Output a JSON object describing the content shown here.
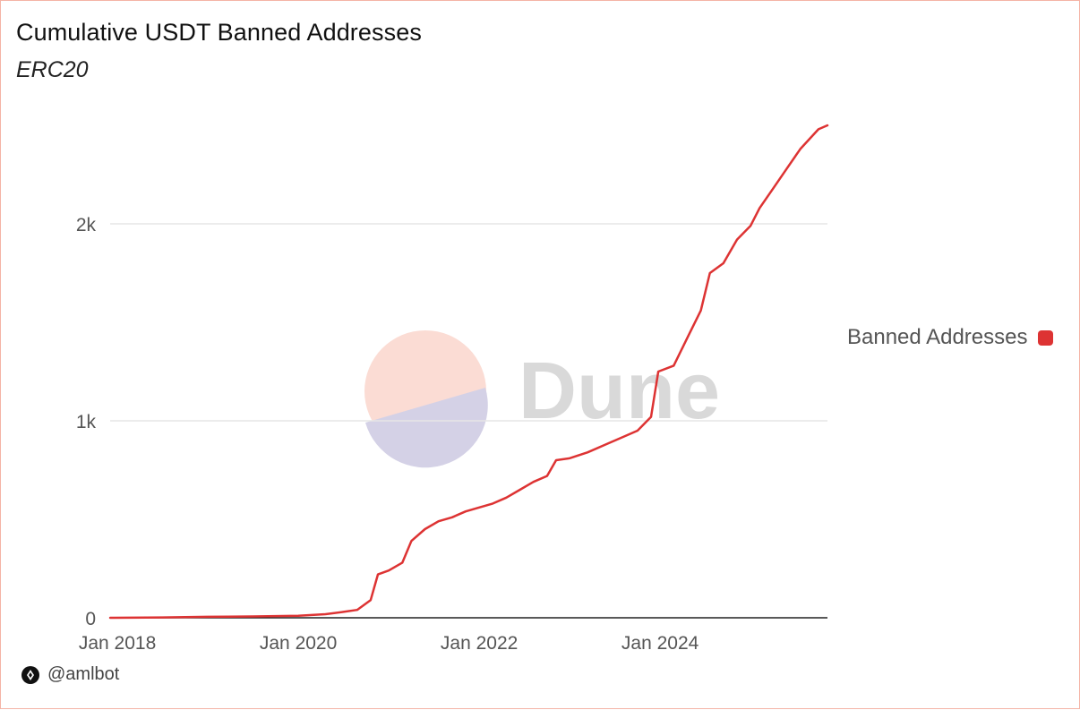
{
  "title": "Cumulative USDT Banned Addresses",
  "subtitle": "ERC20",
  "watermark": "Dune",
  "footer": {
    "handle": "@amlbot",
    "icon": "dune-logo-icon"
  },
  "colors": {
    "series": "#dd3333",
    "border": "#f4b4a6",
    "grid": "#e6e6e6",
    "axis": "#222222"
  },
  "chart_data": {
    "type": "line",
    "title": "Cumulative USDT Banned Addresses",
    "subtitle": "ERC20",
    "xlabel": "",
    "ylabel": "",
    "xlim": [
      2017.92,
      2025.85
    ],
    "ylim": [
      0,
      2500
    ],
    "yticks": [
      0,
      1000,
      2000
    ],
    "ytick_labels": [
      "0",
      "1k",
      "2k"
    ],
    "xticks": [
      2018,
      2020,
      2022,
      2024
    ],
    "xtick_labels": [
      "Jan 2018",
      "Jan 2020",
      "Jan 2022",
      "Jan 2024"
    ],
    "grid": true,
    "legend_position": "right",
    "series": [
      {
        "name": "Banned Addresses",
        "color": "#dd3333",
        "points": [
          [
            2017.92,
            0
          ],
          [
            2018.5,
            2
          ],
          [
            2019.0,
            5
          ],
          [
            2019.5,
            7
          ],
          [
            2020.0,
            10
          ],
          [
            2020.3,
            18
          ],
          [
            2020.5,
            30
          ],
          [
            2020.65,
            40
          ],
          [
            2020.8,
            90
          ],
          [
            2020.88,
            220
          ],
          [
            2021.0,
            240
          ],
          [
            2021.15,
            280
          ],
          [
            2021.25,
            390
          ],
          [
            2021.4,
            450
          ],
          [
            2021.55,
            490
          ],
          [
            2021.7,
            510
          ],
          [
            2021.85,
            540
          ],
          [
            2022.0,
            560
          ],
          [
            2022.15,
            580
          ],
          [
            2022.3,
            610
          ],
          [
            2022.45,
            650
          ],
          [
            2022.6,
            690
          ],
          [
            2022.75,
            720
          ],
          [
            2022.85,
            800
          ],
          [
            2023.0,
            810
          ],
          [
            2023.2,
            840
          ],
          [
            2023.4,
            880
          ],
          [
            2023.6,
            920
          ],
          [
            2023.75,
            950
          ],
          [
            2023.9,
            1020
          ],
          [
            2023.98,
            1250
          ],
          [
            2024.15,
            1280
          ],
          [
            2024.3,
            1420
          ],
          [
            2024.45,
            1560
          ],
          [
            2024.55,
            1750
          ],
          [
            2024.7,
            1800
          ],
          [
            2024.85,
            1920
          ],
          [
            2025.0,
            1990
          ],
          [
            2025.1,
            2080
          ],
          [
            2025.25,
            2180
          ],
          [
            2025.4,
            2280
          ],
          [
            2025.55,
            2380
          ],
          [
            2025.75,
            2480
          ],
          [
            2025.85,
            2500
          ]
        ]
      }
    ]
  }
}
